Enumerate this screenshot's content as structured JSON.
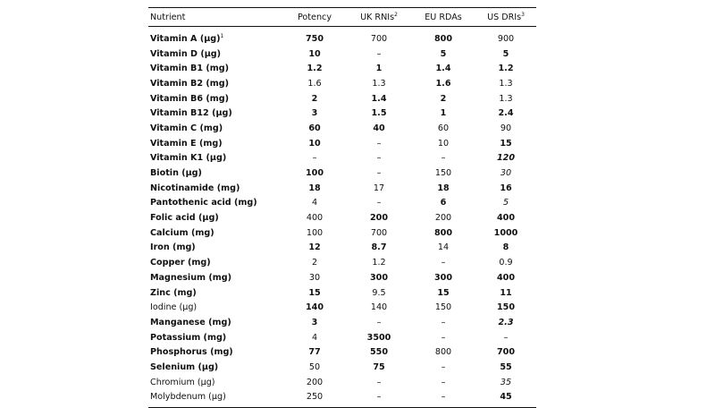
{
  "table": {
    "headers": [
      {
        "text": "Nutrient",
        "sup": ""
      },
      {
        "text": "Potency",
        "sup": ""
      },
      {
        "text": "UK RNIs",
        "sup": "2"
      },
      {
        "text": "EU RDAs",
        "sup": ""
      },
      {
        "text": "US DRIs",
        "sup": "3"
      }
    ],
    "rows": [
      {
        "name": "Vitamin A (µg)",
        "sup": "1",
        "nb": true,
        "cells": [
          [
            "750",
            "b"
          ],
          [
            "700",
            "n"
          ],
          [
            "800",
            "b"
          ],
          [
            "900",
            "n"
          ]
        ]
      },
      {
        "name": "Vitamin D (µg)",
        "sup": "",
        "nb": true,
        "cells": [
          [
            "10",
            "b"
          ],
          [
            "–",
            "n"
          ],
          [
            "5",
            "b"
          ],
          [
            "5",
            "b"
          ]
        ]
      },
      {
        "name": "Vitamin B1 (mg)",
        "sup": "",
        "nb": true,
        "cells": [
          [
            "1.2",
            "b"
          ],
          [
            "1",
            "b"
          ],
          [
            "1.4",
            "b"
          ],
          [
            "1.2",
            "b"
          ]
        ]
      },
      {
        "name": "Vitamin B2 (mg)",
        "sup": "",
        "nb": true,
        "cells": [
          [
            "1.6",
            "n"
          ],
          [
            "1.3",
            "n"
          ],
          [
            "1.6",
            "b"
          ],
          [
            "1.3",
            "n"
          ]
        ]
      },
      {
        "name": "Vitamin B6 (mg)",
        "sup": "",
        "nb": true,
        "cells": [
          [
            "2",
            "b"
          ],
          [
            "1.4",
            "b"
          ],
          [
            "2",
            "b"
          ],
          [
            "1.3",
            "n"
          ]
        ]
      },
      {
        "name": "Vitamin B12 (µg)",
        "sup": "",
        "nb": true,
        "cells": [
          [
            "3",
            "b"
          ],
          [
            "1.5",
            "b"
          ],
          [
            "1",
            "b"
          ],
          [
            "2.4",
            "b"
          ]
        ]
      },
      {
        "name": "Vitamin C (mg)",
        "sup": "",
        "nb": true,
        "cells": [
          [
            "60",
            "b"
          ],
          [
            "40",
            "b"
          ],
          [
            "60",
            "n"
          ],
          [
            "90",
            "n"
          ]
        ]
      },
      {
        "name": "Vitamin E (mg)",
        "sup": "",
        "nb": true,
        "cells": [
          [
            "10",
            "b"
          ],
          [
            "–",
            "n"
          ],
          [
            "10",
            "n"
          ],
          [
            "15",
            "b"
          ]
        ]
      },
      {
        "name": "Vitamin K1 (µg)",
        "sup": "",
        "nb": true,
        "cells": [
          [
            "–",
            "n"
          ],
          [
            "–",
            "n"
          ],
          [
            "–",
            "n"
          ],
          [
            "120",
            "bi"
          ]
        ]
      },
      {
        "name": "Biotin (µg)",
        "sup": "",
        "nb": true,
        "cells": [
          [
            "100",
            "b"
          ],
          [
            "–",
            "n"
          ],
          [
            "150",
            "n"
          ],
          [
            "30",
            "i"
          ]
        ]
      },
      {
        "name": "Nicotinamide (mg)",
        "sup": "",
        "nb": true,
        "cells": [
          [
            "18",
            "b"
          ],
          [
            "17",
            "n"
          ],
          [
            "18",
            "b"
          ],
          [
            "16",
            "b"
          ]
        ]
      },
      {
        "name": "Pantothenic acid (mg)",
        "sup": "",
        "nb": true,
        "cells": [
          [
            "4",
            "n"
          ],
          [
            "–",
            "n"
          ],
          [
            "6",
            "b"
          ],
          [
            "5",
            "i"
          ]
        ]
      },
      {
        "name": "Folic acid (µg)",
        "sup": "",
        "nb": true,
        "cells": [
          [
            "400",
            "n"
          ],
          [
            "200",
            "b"
          ],
          [
            "200",
            "n"
          ],
          [
            "400",
            "b"
          ]
        ]
      },
      {
        "name": "Calcium (mg)",
        "sup": "",
        "nb": true,
        "cells": [
          [
            "100",
            "n"
          ],
          [
            "700",
            "n"
          ],
          [
            "800",
            "b"
          ],
          [
            "1000",
            "b"
          ]
        ]
      },
      {
        "name": "Iron (mg)",
        "sup": "",
        "nb": true,
        "cells": [
          [
            "12",
            "b"
          ],
          [
            "8.7",
            "b"
          ],
          [
            "14",
            "n"
          ],
          [
            "8",
            "b"
          ]
        ]
      },
      {
        "name": "Copper (mg)",
        "sup": "",
        "nb": true,
        "cells": [
          [
            "2",
            "n"
          ],
          [
            "1.2",
            "n"
          ],
          [
            "–",
            "n"
          ],
          [
            "0.9",
            "n"
          ]
        ]
      },
      {
        "name": "Magnesium (mg)",
        "sup": "",
        "nb": true,
        "cells": [
          [
            "30",
            "n"
          ],
          [
            "300",
            "b"
          ],
          [
            "300",
            "b"
          ],
          [
            "400",
            "b"
          ]
        ]
      },
      {
        "name": "Zinc (mg)",
        "sup": "",
        "nb": true,
        "cells": [
          [
            "15",
            "b"
          ],
          [
            "9.5",
            "n"
          ],
          [
            "15",
            "b"
          ],
          [
            "11",
            "b"
          ]
        ]
      },
      {
        "name": "Iodine (µg)",
        "sup": "",
        "nb": false,
        "cells": [
          [
            "140",
            "b"
          ],
          [
            "140",
            "n"
          ],
          [
            "150",
            "n"
          ],
          [
            "150",
            "b"
          ]
        ]
      },
      {
        "name": "Manganese (mg)",
        "sup": "",
        "nb": true,
        "cells": [
          [
            "3",
            "b"
          ],
          [
            "–",
            "n"
          ],
          [
            "–",
            "n"
          ],
          [
            "2.3",
            "bi"
          ]
        ]
      },
      {
        "name": "Potassium (mg)",
        "sup": "",
        "nb": true,
        "cells": [
          [
            "4",
            "n"
          ],
          [
            "3500",
            "b"
          ],
          [
            "–",
            "n"
          ],
          [
            "–",
            "n"
          ]
        ]
      },
      {
        "name": "Phosphorus (mg)",
        "sup": "",
        "nb": true,
        "cells": [
          [
            "77",
            "b"
          ],
          [
            "550",
            "b"
          ],
          [
            "800",
            "n"
          ],
          [
            "700",
            "b"
          ]
        ]
      },
      {
        "name": "Selenium (µg)",
        "sup": "",
        "nb": true,
        "cells": [
          [
            "50",
            "n"
          ],
          [
            "75",
            "b"
          ],
          [
            "–",
            "n"
          ],
          [
            "55",
            "b"
          ]
        ]
      },
      {
        "name": "Chromium (µg)",
        "sup": "",
        "nb": false,
        "cells": [
          [
            "200",
            "n"
          ],
          [
            "–",
            "n"
          ],
          [
            "–",
            "n"
          ],
          [
            "35",
            "i"
          ]
        ]
      },
      {
        "name": "Molybdenum (µg)",
        "sup": "",
        "nb": false,
        "cells": [
          [
            "250",
            "n"
          ],
          [
            "–",
            "n"
          ],
          [
            "–",
            "n"
          ],
          [
            "45",
            "b"
          ]
        ]
      }
    ]
  }
}
